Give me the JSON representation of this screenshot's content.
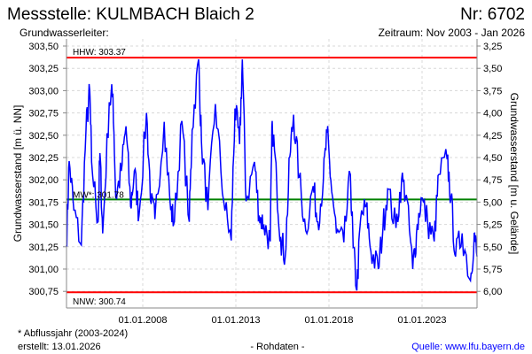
{
  "header": {
    "title": "Messstelle: KULMBACH Blaich 2",
    "number": "Nr: 6702",
    "aquifer": "Grundwasserleiter:",
    "period": "Zeitraum: Nov 2003 - Jan 2026"
  },
  "footer": {
    "note": "* Abflussjahr (2003-2024)",
    "created": "erstellt:  13.01.2026",
    "raw": "- Rohdaten -",
    "source": "Quelle: www.lfu.bayern.de"
  },
  "colors": {
    "series": "#0000ff",
    "extreme": "#ff0000",
    "mean": "#008000",
    "source_link": "#0000ff"
  },
  "chart_data": {
    "type": "line",
    "ylabel": "Grundwasserstand [m ü. NN]",
    "ylabel_right": "Grundwasserstand [m u. Gelände]",
    "ground_level": 306.75,
    "xlim": [
      2003.85,
      2026.05
    ],
    "ylim": [
      300.75,
      303.5
    ],
    "grid": true,
    "yticks": [
      303.5,
      303.25,
      303.0,
      302.75,
      302.5,
      302.25,
      302.0,
      301.75,
      301.5,
      301.25,
      301.0,
      300.75
    ],
    "ytick_labels": [
      "303,50",
      "303,25",
      "303,00",
      "302,75",
      "302,50",
      "302,25",
      "302,00",
      "301,75",
      "301,50",
      "301,25",
      "301,00",
      "300,75"
    ],
    "ytick_labels_right": [
      "3,25",
      "3,50",
      "3,75",
      "4,00",
      "4,25",
      "4,50",
      "4,75",
      "5,00",
      "5,25",
      "5,50",
      "5,75",
      "6,00"
    ],
    "xticks": [
      2008,
      2013,
      2018,
      2023
    ],
    "xtick_labels": [
      "01.01.2008",
      "01.01.2013",
      "01.01.2018",
      "01.01.2023"
    ],
    "reference_lines": [
      {
        "name": "HHW",
        "label": "HHW: 303.37",
        "value": 303.37
      },
      {
        "name": "MW",
        "label": "MW*: 301.78",
        "value": 301.78
      },
      {
        "name": "NNW",
        "label": "NNW: 300.74",
        "value": 300.74
      }
    ],
    "series": [
      {
        "name": "Grundwasserstand",
        "x": [
          2003.9,
          2004.05,
          2004.3,
          2004.7,
          2004.95,
          2005.15,
          2005.25,
          2005.6,
          2005.7,
          2005.85,
          2006.2,
          2006.4,
          2006.55,
          2006.85,
          2007.1,
          2007.35,
          2007.55,
          2007.8,
          2008.2,
          2008.45,
          2008.65,
          2009.15,
          2009.5,
          2009.7,
          2010.1,
          2010.5,
          2010.65,
          2011.0,
          2011.15,
          2011.5,
          2011.9,
          2012.35,
          2012.75,
          2012.95,
          2013.2,
          2013.35,
          2013.55,
          2014.0,
          2014.25,
          2014.5,
          2014.85,
          2014.95,
          2015.2,
          2015.4,
          2015.65,
          2015.9,
          2016.1,
          2016.4,
          2016.75,
          2017.15,
          2017.4,
          2017.7,
          2017.9,
          2018.1,
          2018.4,
          2018.8,
          2019.15,
          2019.3,
          2019.5,
          2019.7,
          2020.0,
          2020.25,
          2020.65,
          2020.9,
          2021.15,
          2021.6,
          2021.9,
          2022.15,
          2022.5,
          2022.7,
          2022.95,
          2023.3,
          2023.65,
          2023.9,
          2024.35,
          2024.55,
          2024.8,
          2025.15,
          2025.6,
          2025.8,
          2025.95
        ],
        "y": [
          301.27,
          302.21,
          301.66,
          301.27,
          302.56,
          303.0,
          302.2,
          301.53,
          302.3,
          301.4,
          302.87,
          302.95,
          301.8,
          302.1,
          302.6,
          301.7,
          302.1,
          301.6,
          302.75,
          301.73,
          301.56,
          302.65,
          301.66,
          301.53,
          302.66,
          301.53,
          302.56,
          303.35,
          302.43,
          301.66,
          302.85,
          301.76,
          301.32,
          302.8,
          302.4,
          303.35,
          301.76,
          302.2,
          301.6,
          301.5,
          301.31,
          302.66,
          301.93,
          301.36,
          301.14,
          302.26,
          302.73,
          302.03,
          301.43,
          301.93,
          301.53,
          302.0,
          302.53,
          302.0,
          301.4,
          301.3,
          302.06,
          301.24,
          300.76,
          301.56,
          301.7,
          301.2,
          301.0,
          301.46,
          301.9,
          301.46,
          302.0,
          301.83,
          301.0,
          301.4,
          301.8,
          301.53,
          301.31,
          302.06,
          302.23,
          301.8,
          301.14,
          301.4,
          300.87,
          301.4,
          301.14
        ]
      }
    ]
  }
}
